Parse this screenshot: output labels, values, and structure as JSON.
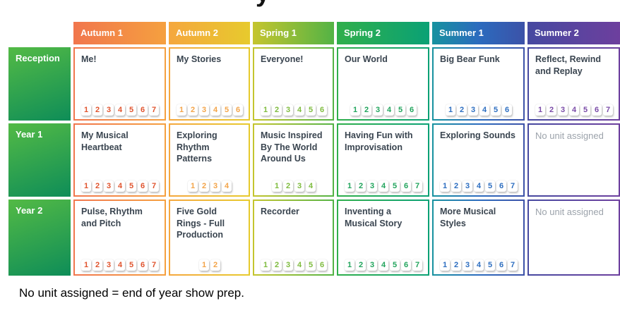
{
  "page": {
    "title_fragment": "y",
    "note": "No unit assigned = end of year show prep."
  },
  "table": {
    "row_header_gradient": [
      "#53BA45",
      "#0E8D58"
    ],
    "unit_title_color": "#3A4550",
    "placeholder_color": "#9CA3AB",
    "columns": [
      {
        "label": "Autumn 1",
        "gradient": [
          "#F1764D",
          "#F5A03F"
        ],
        "chip_color": "#E0542E"
      },
      {
        "label": "Autumn 2",
        "gradient": [
          "#F5A73E",
          "#E7CA2D"
        ],
        "chip_color": "#F3A449"
      },
      {
        "label": "Spring 1",
        "gradient": [
          "#C5C52E",
          "#53B345"
        ],
        "chip_color": "#7EBB3E"
      },
      {
        "label": "Spring 2",
        "gradient": [
          "#30AF4B",
          "#0AA175"
        ],
        "chip_color": "#21A45C"
      },
      {
        "label": "Summer 1",
        "gradient": [
          "#17929F",
          "#2B6BBE",
          "#3C52A8"
        ],
        "chip_color": "#2D6EC0"
      },
      {
        "label": "Summer 2",
        "gradient": [
          "#4649A0",
          "#6D3F9E"
        ],
        "chip_color": "#7A4BA7"
      }
    ],
    "rows": [
      {
        "label": "Reception",
        "units": [
          {
            "title": "Me!",
            "steps": 7
          },
          {
            "title": "My Stories",
            "steps": 6
          },
          {
            "title": "Everyone!",
            "steps": 6
          },
          {
            "title": "Our World",
            "steps": 6
          },
          {
            "title": "Big Bear Funk",
            "steps": 6
          },
          {
            "title": "Reflect, Rewind and Replay",
            "steps": 7
          }
        ]
      },
      {
        "label": "Year 1",
        "units": [
          {
            "title": "My Musical Heartbeat",
            "steps": 7
          },
          {
            "title": "Exploring Rhythm Patterns",
            "steps": 4
          },
          {
            "title": "Music Inspired By The World Around Us",
            "steps": 4
          },
          {
            "title": "Having Fun with Improvisation",
            "steps": 7
          },
          {
            "title": "Exploring Sounds",
            "steps": 7
          },
          {
            "title": "No unit assigned",
            "steps": 0,
            "placeholder": true
          }
        ]
      },
      {
        "label": "Year 2",
        "units": [
          {
            "title": "Pulse, Rhythm and Pitch",
            "steps": 7
          },
          {
            "title": "Five Gold Rings - Full Production",
            "steps": 2
          },
          {
            "title": "Recorder",
            "steps": 6
          },
          {
            "title": "Inventing a Musical Story",
            "steps": 7
          },
          {
            "title": "More Musical Styles",
            "steps": 7
          },
          {
            "title": "No unit assigned",
            "steps": 0,
            "placeholder": true
          }
        ]
      }
    ]
  }
}
